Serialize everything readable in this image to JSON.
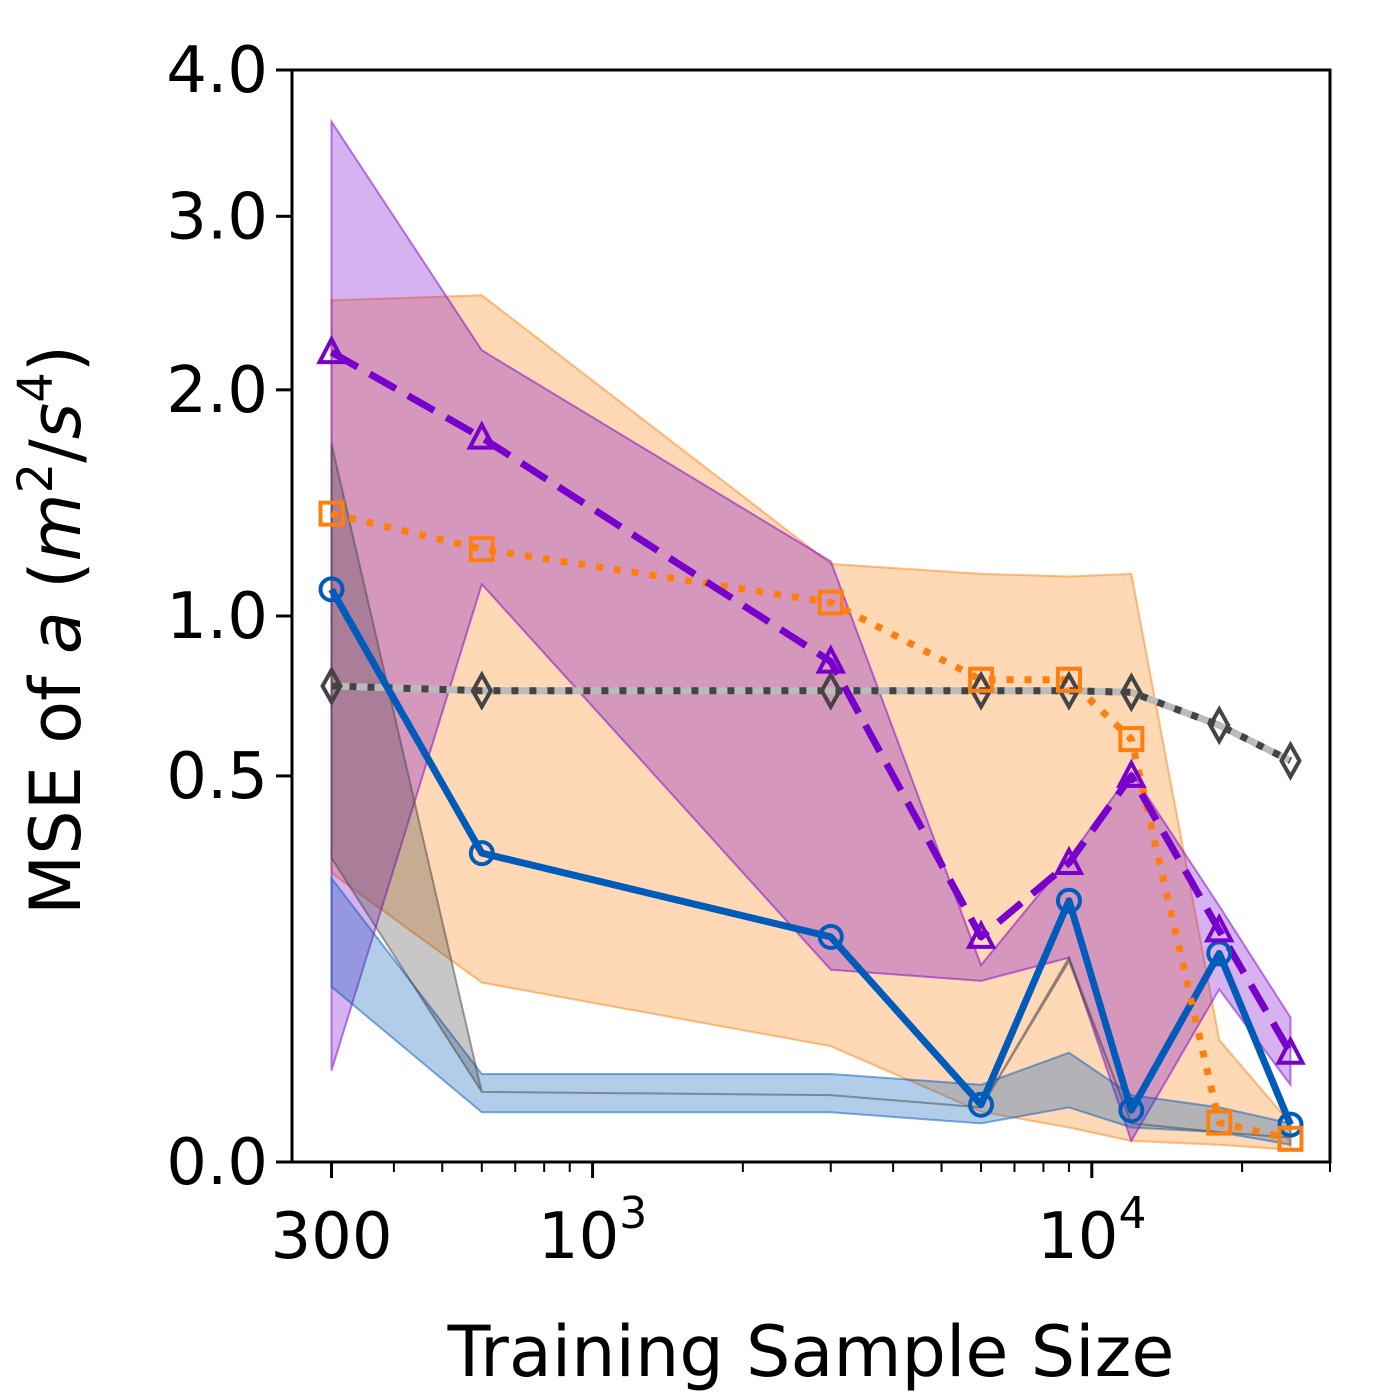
{
  "chart_data": {
    "type": "line",
    "title": "",
    "xlabel": "Training Sample Size",
    "ylabel_parts": [
      "MSE of ",
      "a",
      " (",
      "m",
      "2",
      "/",
      "s",
      "4",
      ")"
    ],
    "xscale": "log",
    "yscale": "sqrt",
    "xlim": [
      250,
      30000
    ],
    "ylim": [
      0,
      4
    ],
    "xticks": [
      {
        "value": 300,
        "base": "300",
        "exp": ""
      },
      {
        "value": 1000,
        "base": "10",
        "exp": "3"
      },
      {
        "value": 10000,
        "base": "10",
        "exp": "4"
      }
    ],
    "yticks": [
      {
        "value": 0,
        "label": "0.0"
      },
      {
        "value": 0.5,
        "label": "0.5"
      },
      {
        "value": 1,
        "label": "1.0"
      },
      {
        "value": 2,
        "label": "2.0"
      },
      {
        "value": 3,
        "label": "3.0"
      },
      {
        "value": 4,
        "label": "4.0"
      }
    ],
    "grid": false,
    "legend": "none",
    "series": [
      {
        "key": "orange",
        "color": "#ff7f0e",
        "linestyle": "dotted",
        "marker": "square",
        "x": [
          300,
          600,
          3000,
          6000,
          9000,
          12000,
          18000,
          25000
        ],
        "y": [
          1.41,
          1.26,
          1.05,
          0.78,
          0.78,
          0.6,
          0.0052,
          0.0018
        ],
        "band_lower": [
          0.28,
          0.108,
          0.045,
          0.0085,
          0.004,
          0.0015,
          0.001,
          0.0005
        ],
        "band_upper": [
          2.49,
          2.52,
          1.2,
          1.16,
          1.15,
          1.16,
          0.05,
          0.005
        ]
      },
      {
        "key": "purple",
        "color": "#7700cc",
        "linestyle": "dashed",
        "marker": "triangle",
        "x": [
          300,
          600,
          3000,
          6000,
          9000,
          12000,
          18000,
          25000
        ],
        "y": [
          2.2,
          1.76,
          0.84,
          0.17,
          0.3,
          0.5,
          0.18,
          0.04
        ],
        "band_lower": [
          0.028,
          1.12,
          0.124,
          0.11,
          0.14,
          0.0015,
          0.1,
          0.02
        ],
        "band_upper": [
          3.63,
          2.21,
          1.21,
          0.13,
          0.31,
          0.51,
          0.22,
          0.07
        ]
      },
      {
        "key": "blue",
        "color": "#005bbb",
        "linestyle": "solid",
        "marker": "circle",
        "x": [
          300,
          600,
          3000,
          6000,
          9000,
          12000,
          18000,
          25000
        ],
        "y": [
          1.1,
          0.32,
          0.17,
          0.011,
          0.229,
          0.009,
          0.146,
          0.0047
        ],
        "band_lower": [
          0.103,
          0.0083,
          0.0083,
          0.005,
          0.01,
          0.004,
          0.003,
          0.001
        ],
        "band_upper": [
          0.27,
          0.026,
          0.026,
          0.02,
          0.04,
          0.015,
          0.01,
          0.005
        ]
      },
      {
        "key": "gray",
        "color": "#444444",
        "linestyle": "dotted",
        "marker": "diamond",
        "x": [
          300,
          600,
          3000,
          6000,
          9000,
          12000,
          18000,
          25000
        ],
        "y": [
          0.76,
          0.745,
          0.745,
          0.745,
          0.745,
          0.74,
          0.64,
          0.54
        ],
        "band_lower": [
          0.31,
          0.0165,
          0.015,
          0.01,
          0.135,
          0.005,
          0.003,
          0.002
        ],
        "band_upper": [
          1.73,
          0.0165,
          0.015,
          0.01,
          0.14,
          0.005,
          0.003,
          0.002
        ]
      }
    ]
  }
}
